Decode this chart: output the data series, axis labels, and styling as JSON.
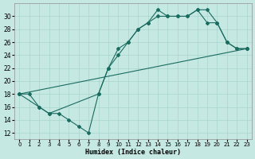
{
  "xlabel": "Humidex (Indice chaleur)",
  "background_color": "#c5e8e2",
  "grid_color": "#a8d4cc",
  "line_color": "#1a6b60",
  "xlim_min": -0.5,
  "xlim_max": 23.5,
  "ylim_min": 11,
  "ylim_max": 32,
  "xticks": [
    0,
    1,
    2,
    3,
    4,
    5,
    6,
    7,
    8,
    9,
    10,
    11,
    12,
    13,
    14,
    15,
    16,
    17,
    18,
    19,
    20,
    21,
    22,
    23
  ],
  "yticks": [
    12,
    14,
    16,
    18,
    20,
    22,
    24,
    26,
    28,
    30
  ],
  "line1_x": [
    0,
    1,
    2,
    3,
    4,
    5,
    6,
    7,
    8,
    9,
    10,
    11,
    12,
    13,
    14,
    15,
    16,
    17,
    18,
    19,
    20,
    21,
    22,
    23
  ],
  "line1_y": [
    18,
    18,
    16,
    15,
    15,
    14,
    13,
    12,
    18,
    22,
    25,
    26,
    28,
    29,
    30,
    30,
    30,
    30,
    31,
    29,
    29,
    26,
    25,
    25
  ],
  "line2_x": [
    0,
    2,
    3,
    8,
    9,
    10,
    11,
    12,
    13,
    14,
    15,
    16,
    17,
    18,
    19,
    20,
    21,
    22,
    23
  ],
  "line2_y": [
    18,
    16,
    15,
    18,
    22,
    24,
    26,
    28,
    29,
    31,
    30,
    30,
    30,
    31,
    31,
    29,
    26,
    25,
    25
  ],
  "line3_x": [
    0,
    23
  ],
  "line3_y": [
    18,
    25
  ]
}
